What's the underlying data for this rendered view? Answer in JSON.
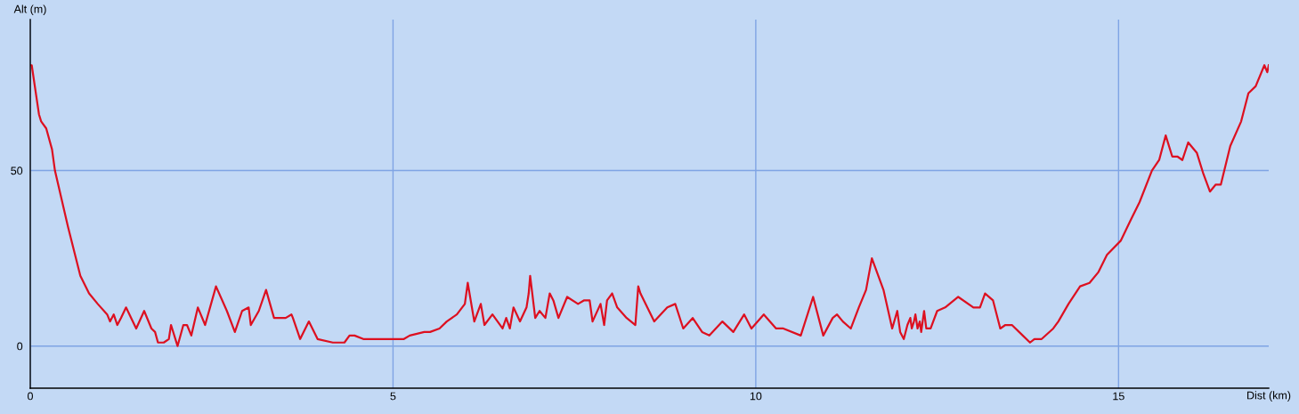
{
  "chart_data": {
    "type": "line",
    "xlabel": "Dist (km)",
    "ylabel": "Alt (m)",
    "x": [
      0,
      0.02,
      0.12,
      0.15,
      0.22,
      0.3,
      0.34,
      0.52,
      0.69,
      0.81,
      0.93,
      1.06,
      1.1,
      1.15,
      1.2,
      1.25,
      1.32,
      1.46,
      1.57,
      1.67,
      1.72,
      1.76,
      1.84,
      1.91,
      1.94,
      2.03,
      2.11,
      2.16,
      2.22,
      2.31,
      2.41,
      2.56,
      2.71,
      2.82,
      2.92,
      3.01,
      3.04,
      3.15,
      3.25,
      3.36,
      3.52,
      3.6,
      3.62,
      3.72,
      3.84,
      3.96,
      4.17,
      4.33,
      4.4,
      4.47,
      4.59,
      5.15,
      5.23,
      5.43,
      5.51,
      5.64,
      5.74,
      5.88,
      5.99,
      6.03,
      6.12,
      6.21,
      6.26,
      6.37,
      6.51,
      6.56,
      6.61,
      6.66,
      6.75,
      6.84,
      6.87,
      6.89,
      6.96,
      7.02,
      7.1,
      7.16,
      7.21,
      7.28,
      7.4,
      7.55,
      7.63,
      7.71,
      7.75,
      7.86,
      7.91,
      7.95,
      8.02,
      8.09,
      8.22,
      8.34,
      8.38,
      8.41,
      8.6,
      8.78,
      8.89,
      9.0,
      9.13,
      9.26,
      9.36,
      9.54,
      9.69,
      9.84,
      9.94,
      10.11,
      10.28,
      10.38,
      10.62,
      10.79,
      10.93,
      11.06,
      11.12,
      11.2,
      11.31,
      11.42,
      11.52,
      11.6,
      11.76,
      11.88,
      11.95,
      11.99,
      12.04,
      12.09,
      12.13,
      12.15,
      12.18,
      12.2,
      12.23,
      12.26,
      12.28,
      12.32,
      12.35,
      12.41,
      12.5,
      12.61,
      12.79,
      13.0,
      13.09,
      13.16,
      13.27,
      13.37,
      13.44,
      13.53,
      13.68,
      13.78,
      13.84,
      13.94,
      14.1,
      14.17,
      14.31,
      14.47,
      14.6,
      14.72,
      14.84,
      15.03,
      15.17,
      15.29,
      15.46,
      15.56,
      15.65,
      15.74,
      15.81,
      15.88,
      15.96,
      16.08,
      16.17,
      16.26,
      16.34,
      16.41,
      16.54,
      16.69,
      16.79,
      16.89,
      17.01,
      17.05,
      17.07
    ],
    "series": [
      {
        "color": "#dd1020",
        "values": [
          80,
          80,
          66,
          64,
          62,
          56,
          50,
          34,
          20,
          15,
          12,
          9,
          7,
          9,
          6,
          8,
          11,
          5,
          10,
          5,
          4,
          1,
          1,
          2,
          6,
          0,
          6,
          6,
          3,
          11,
          6,
          17,
          10,
          4,
          10,
          11,
          6,
          10,
          16,
          8,
          8,
          9,
          8,
          2,
          7,
          2,
          1,
          1,
          3,
          3,
          2,
          2,
          3,
          4,
          4,
          5,
          7,
          9,
          12,
          18,
          7,
          12,
          6,
          9,
          5,
          8,
          5,
          11,
          7,
          11,
          15,
          20,
          8,
          10,
          8,
          15,
          13,
          8,
          14,
          12,
          13,
          13,
          7,
          12,
          6,
          13,
          15,
          11,
          8,
          6,
          17,
          15,
          7,
          11,
          12,
          5,
          8,
          4,
          3,
          7,
          4,
          9,
          5,
          9,
          5,
          5,
          3,
          14,
          3,
          8,
          9,
          7,
          5,
          11,
          16,
          25,
          16,
          5,
          10,
          4,
          2,
          6,
          8,
          5,
          7,
          9,
          5,
          7,
          4,
          10,
          5,
          5,
          10,
          11,
          14,
          11,
          11,
          15,
          13,
          5,
          6,
          6,
          3,
          1,
          2,
          2,
          5,
          7,
          12,
          17,
          18,
          21,
          26,
          30,
          36,
          41,
          50,
          53,
          60,
          54,
          54,
          53,
          58,
          55,
          49,
          44,
          46,
          46,
          57,
          64,
          72,
          74,
          80,
          78,
          80
        ]
      }
    ],
    "xlim": [
      0,
      17.07
    ],
    "ylim": [
      -12,
      93
    ],
    "xticks": [
      0,
      5,
      10,
      15
    ],
    "yticks": [
      0,
      50
    ],
    "grid": true,
    "marker": "none",
    "line_style": "solid"
  }
}
